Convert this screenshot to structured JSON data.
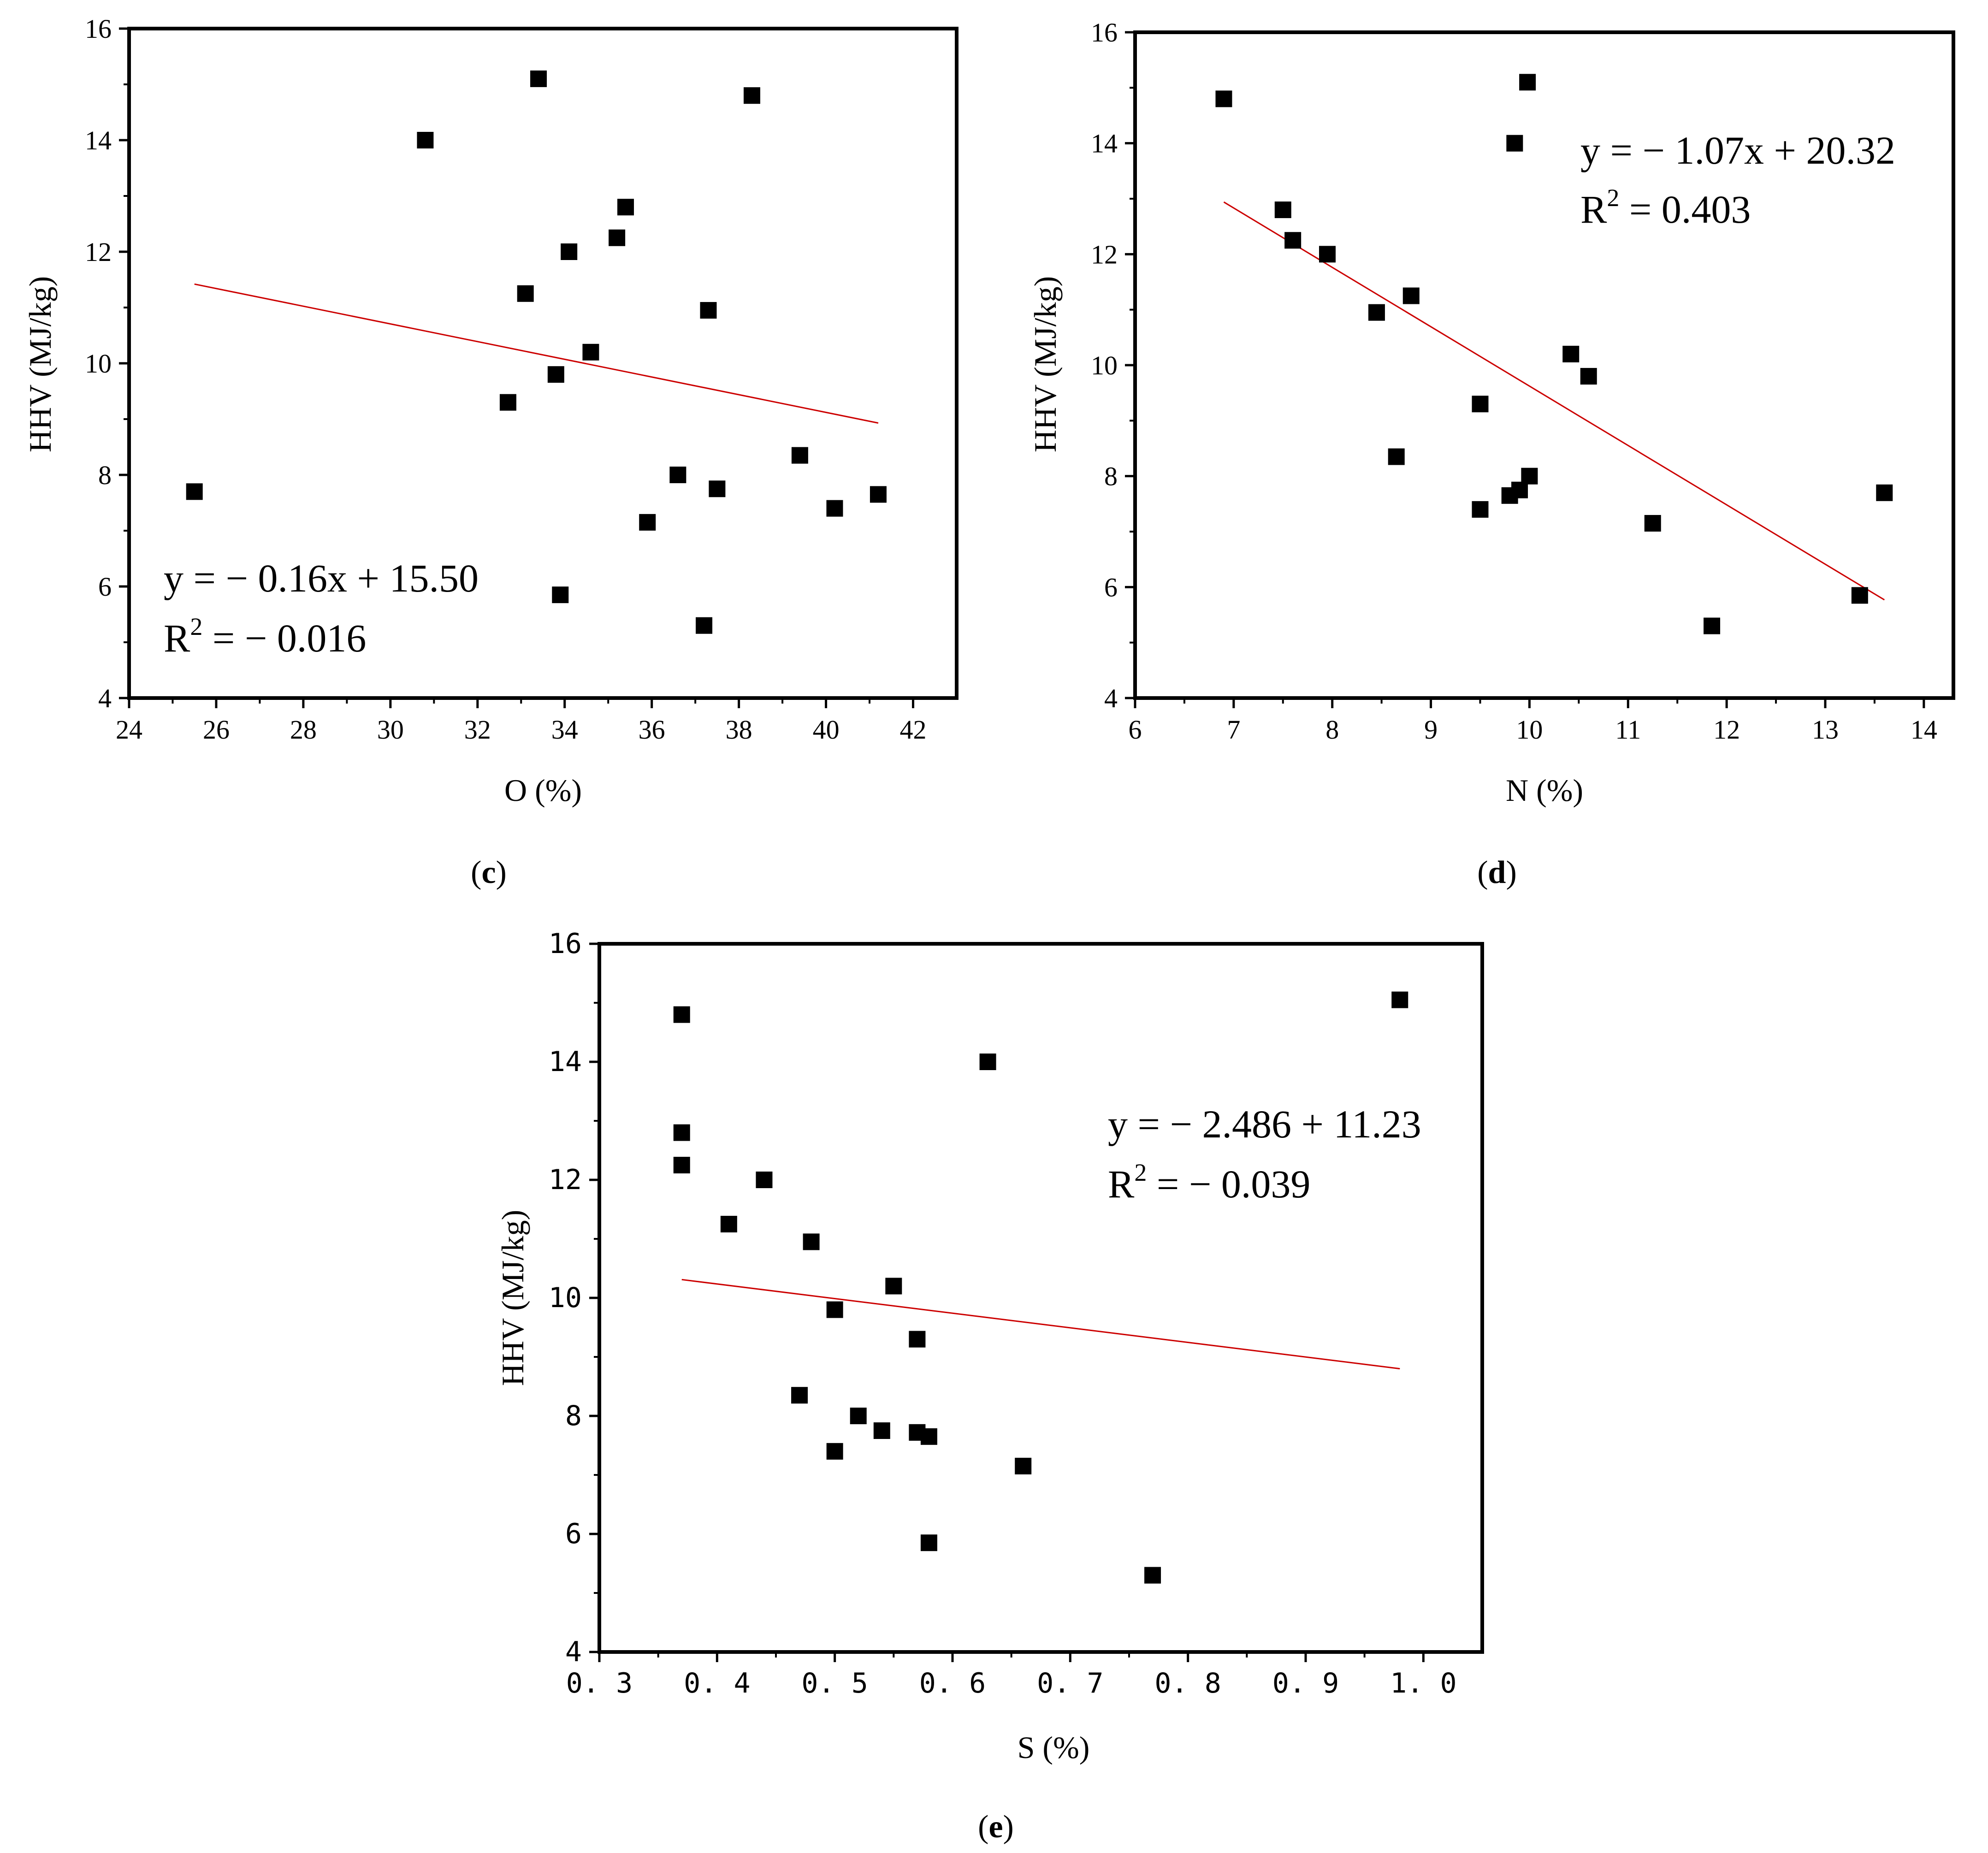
{
  "chart_data": [
    {
      "id": "c",
      "type": "scatter",
      "panel_label": {
        "open": "(",
        "letter": "c",
        "close": ")"
      },
      "xlabel": "O (%)",
      "ylabel": "HHV (MJ/kg)",
      "xlim": [
        24,
        43
      ],
      "ylim": [
        4,
        16
      ],
      "xticks": [
        "24",
        "26",
        "28",
        "30",
        "32",
        "34",
        "36",
        "38",
        "40",
        "42"
      ],
      "yticks": [
        "4",
        "6",
        "8",
        "10",
        "12",
        "14",
        "16"
      ],
      "tick_values_x": [
        24,
        26,
        28,
        30,
        32,
        34,
        36,
        38,
        40,
        42
      ],
      "tick_values_y": [
        4,
        6,
        8,
        10,
        12,
        14,
        16
      ],
      "x": [
        25.5,
        30.8,
        33.4,
        38.3,
        35.4,
        35.2,
        34.1,
        33.1,
        37.3,
        34.6,
        33.8,
        32.7,
        39.4,
        36.6,
        37.5,
        35.9,
        40.2,
        41.2,
        33.9,
        37.2
      ],
      "y": [
        7.7,
        14.0,
        15.1,
        14.8,
        12.8,
        12.25,
        12.0,
        11.25,
        10.95,
        10.2,
        9.8,
        9.3,
        8.35,
        8.0,
        7.75,
        7.15,
        7.4,
        7.65,
        5.85,
        5.3
      ],
      "fit_line": {
        "x": [
          25.5,
          41.2
        ],
        "y": [
          11.42,
          8.93
        ],
        "color": "#cc0000"
      },
      "equation": {
        "line1": "y = − 0.16x + 15.50",
        "r_letter": "R",
        "r_exp": "2",
        "r_rest": " = − 0.016"
      }
    },
    {
      "id": "d",
      "type": "scatter",
      "panel_label": {
        "open": "(",
        "letter": "d",
        "close": ")"
      },
      "xlabel": "N (%)",
      "ylabel": "HHV (MJ/kg)",
      "xlim": [
        6,
        14.3
      ],
      "ylim": [
        4,
        16
      ],
      "xticks": [
        "6",
        "7",
        "8",
        "9",
        "10",
        "11",
        "12",
        "13",
        "14"
      ],
      "yticks": [
        "4",
        "6",
        "8",
        "10",
        "12",
        "14",
        "16"
      ],
      "tick_values_x": [
        6,
        7,
        8,
        9,
        10,
        11,
        12,
        13,
        14
      ],
      "tick_values_y": [
        4,
        6,
        8,
        10,
        12,
        14,
        16
      ],
      "x": [
        6.9,
        7.5,
        7.6,
        7.95,
        8.8,
        8.45,
        8.65,
        9.5,
        9.5,
        9.8,
        9.9,
        10.0,
        9.85,
        9.98,
        10.42,
        10.6,
        11.25,
        11.85,
        13.35,
        13.6
      ],
      "y": [
        14.8,
        12.8,
        12.25,
        12.0,
        11.25,
        10.95,
        8.35,
        9.3,
        7.4,
        7.65,
        7.75,
        8.0,
        14.0,
        15.1,
        10.2,
        9.8,
        7.15,
        5.3,
        5.85,
        7.7
      ],
      "fit_line": {
        "x": [
          6.9,
          13.6
        ],
        "y": [
          12.94,
          5.77
        ],
        "color": "#cc0000"
      },
      "equation": {
        "line1": "y = − 1.07x + 20.32",
        "r_letter": "R",
        "r_exp": "2",
        "r_rest": " = 0.403"
      }
    },
    {
      "id": "e",
      "type": "scatter",
      "panel_label": {
        "open": "(",
        "letter": "e",
        "close": ")"
      },
      "xlabel": "S (%)",
      "ylabel": "HHV (MJ/kg)",
      "xlim": [
        0.3,
        1.05
      ],
      "ylim": [
        4,
        16
      ],
      "xticks": [
        "0. 3",
        "0. 4",
        "0. 5",
        "0. 6",
        "0. 7",
        "0. 8",
        "0. 9",
        "1. 0"
      ],
      "yticks": [
        "4",
        "6",
        "8",
        "10",
        "12",
        "14",
        "16"
      ],
      "tick_values_x": [
        0.3,
        0.4,
        0.5,
        0.6,
        0.7,
        0.8,
        0.9,
        1.0
      ],
      "tick_values_y": [
        4,
        6,
        8,
        10,
        12,
        14,
        16
      ],
      "x": [
        0.37,
        0.37,
        0.37,
        0.44,
        0.41,
        0.48,
        0.55,
        0.5,
        0.57,
        0.47,
        0.52,
        0.54,
        0.57,
        0.58,
        0.5,
        0.66,
        0.58,
        0.77,
        0.63,
        0.98
      ],
      "y": [
        14.8,
        12.8,
        12.25,
        12.0,
        11.25,
        10.95,
        10.2,
        9.8,
        9.3,
        8.35,
        8.0,
        7.75,
        7.72,
        7.65,
        7.4,
        7.15,
        5.85,
        5.3,
        14.0,
        15.05
      ],
      "fit_line": {
        "x": [
          0.37,
          0.98
        ],
        "y": [
          10.31,
          8.8
        ],
        "color": "#cc0000"
      },
      "equation": {
        "line1": "y = − 2.486 + 11.23",
        "r_letter": "R",
        "r_exp": "2",
        "r_rest": " = − 0.039"
      }
    }
  ]
}
